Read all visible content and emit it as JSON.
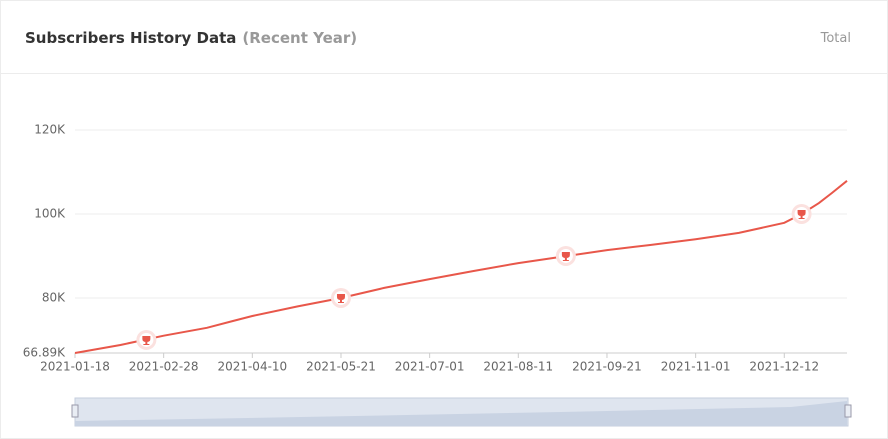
{
  "header": {
    "title": "Subscribers History Data",
    "subtitle": "(Recent Year)",
    "toggle": "Total"
  },
  "chart_data": {
    "type": "line",
    "x": [
      "2021-01-18",
      "2021-02-08",
      "2021-02-28",
      "2021-03-20",
      "2021-04-01",
      "2021-04-10",
      "2021-05-01",
      "2021-05-21",
      "2021-06-10",
      "2021-07-01",
      "2021-07-21",
      "2021-08-11",
      "2021-08-31",
      "2021-09-21",
      "2021-10-11",
      "2021-11-01",
      "2021-11-21",
      "2021-12-12",
      "2021-12-20",
      "2021-12-28",
      "2022-01-03",
      "2022-01-10"
    ],
    "series": [
      {
        "name": "Subscribers",
        "color": "#e8574a",
        "values": [
          66900,
          68800,
          71000,
          72900,
          74500,
          75700,
          78000,
          80000,
          82400,
          84500,
          86400,
          88300,
          89800,
          91400,
          92600,
          94000,
          95500,
          97900,
          100000,
          102600,
          105000,
          107900
        ]
      }
    ],
    "milestones": {
      "x": [
        "2021-02-20",
        "2021-05-21",
        "2021-09-02",
        "2021-12-20"
      ],
      "values": [
        70000,
        80000,
        90000,
        100000
      ]
    },
    "xlim": [
      "2021-01-18",
      "2022-01-10"
    ],
    "xticks": [
      "2021-01-18",
      "2021-02-28",
      "2021-04-10",
      "2021-05-21",
      "2021-07-01",
      "2021-08-11",
      "2021-09-21",
      "2021-11-01",
      "2021-12-12"
    ],
    "ylim": [
      66890,
      120000
    ],
    "yticks": [
      {
        "value": 66890,
        "label": "66.89K"
      },
      {
        "value": 80000,
        "label": "80K"
      },
      {
        "value": 100000,
        "label": "100K"
      },
      {
        "value": 120000,
        "label": "120K"
      }
    ],
    "grid": true
  }
}
